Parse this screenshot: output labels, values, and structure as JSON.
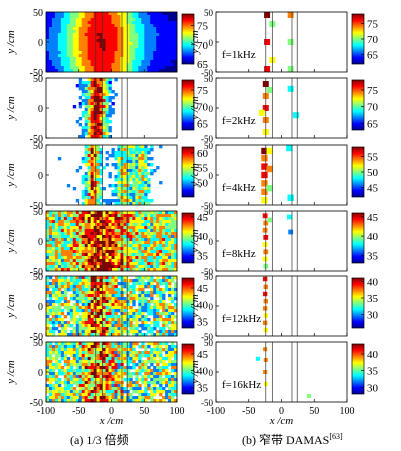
{
  "colormap": [
    "#00008f",
    "#0000ff",
    "#0080ff",
    "#00ffff",
    "#80ff80",
    "#ffff00",
    "#ff8000",
    "#ff0000",
    "#800000"
  ],
  "captions": {
    "left": "(a) 1/3 倍频",
    "right": "(b) 窄带 DAMAS",
    "right_ref": "[63]"
  },
  "chart_data": {
    "type": "heatmap",
    "x_axis": {
      "label": "x /cm",
      "range": [
        -100,
        100
      ],
      "ticks": [
        "-100",
        "-50",
        "0",
        "50",
        "100"
      ]
    },
    "y_axis": {
      "label": "y /cm",
      "range": [
        -50,
        50
      ],
      "ticks": [
        "-50",
        "0",
        "50"
      ]
    },
    "rows": [
      {
        "freq_label": "f=1kHz",
        "left": {
          "colorbar": {
            "range": [
              65,
              78
            ],
            "ticks": [
              "65",
              "70",
              "75"
            ]
          }
        },
        "right": {
          "colorbar": {
            "range": [
              62,
              78
            ],
            "ticks": [
              "65",
              "70",
              "75"
            ]
          }
        }
      },
      {
        "freq_label": "f=2kHz",
        "left": {
          "colorbar": {
            "range": [
              63,
              78
            ],
            "ticks": [
              "65",
              "70",
              "75"
            ]
          }
        },
        "right": {
          "colorbar": {
            "range": [
              63,
              78
            ],
            "ticks": [
              "65",
              "70",
              "75"
            ]
          }
        }
      },
      {
        "freq_label": "f=4kHz",
        "left": {
          "colorbar": {
            "range": [
              45,
              62
            ],
            "ticks": [
              "50",
              "55",
              "60"
            ]
          }
        },
        "right": {
          "colorbar": {
            "range": [
              42,
              58
            ],
            "ticks": [
              "45",
              "50",
              "55"
            ]
          }
        }
      },
      {
        "freq_label": "f=8kHz",
        "left": {
          "colorbar": {
            "range": [
              33,
              46
            ],
            "ticks": [
              "45",
              "40",
              "35"
            ]
          }
        },
        "right": {
          "colorbar": {
            "range": [
              33,
              46
            ],
            "ticks": [
              "35",
              "40",
              "45"
            ]
          }
        }
      },
      {
        "freq_label": "f=12kHz",
        "left": {
          "colorbar": {
            "range": [
              33,
              48
            ],
            "ticks": [
              "35",
              "40",
              "45"
            ]
          }
        },
        "right": {
          "colorbar": {
            "range": [
              26,
              41
            ],
            "ticks": [
              "30",
              "35",
              "40"
            ]
          }
        }
      },
      {
        "freq_label": "f=16kHz",
        "left": {
          "colorbar": {
            "range": [
              33,
              48
            ],
            "ticks": [
              "35",
              "40",
              "45"
            ]
          }
        },
        "right": {
          "colorbar": {
            "range": [
              28,
              43
            ],
            "ticks": [
              "30",
              "35",
              "40"
            ]
          }
        }
      }
    ]
  }
}
